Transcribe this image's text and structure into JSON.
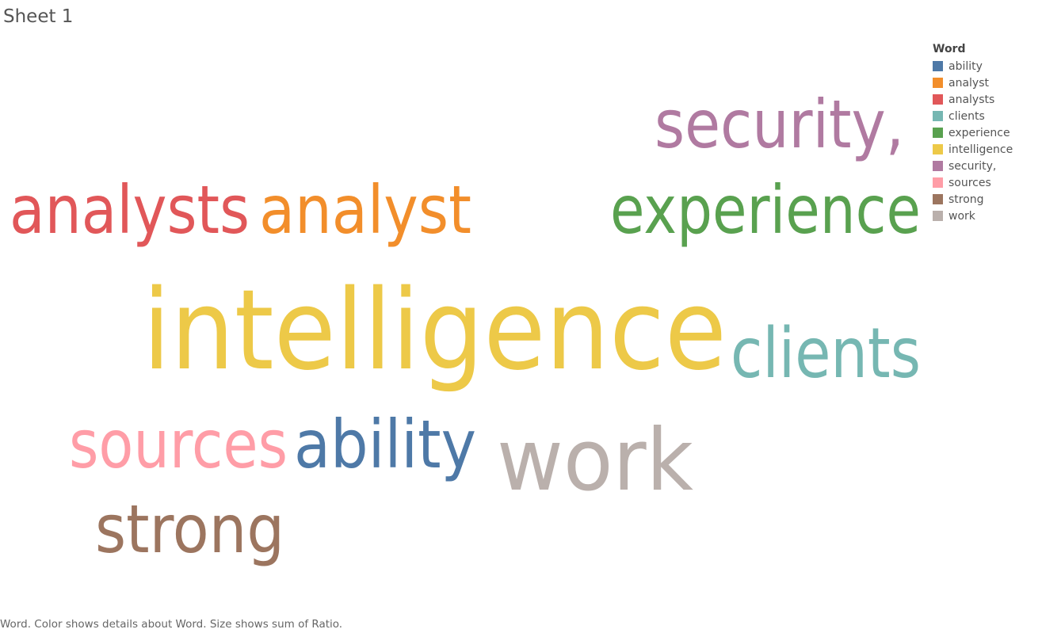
{
  "sheet": {
    "title": "Sheet 1"
  },
  "legend": {
    "title": "Word",
    "items": [
      {
        "label": "ability",
        "color": "#4e79a7"
      },
      {
        "label": "analyst",
        "color": "#f28e2b"
      },
      {
        "label": "analysts",
        "color": "#e15759"
      },
      {
        "label": "clients",
        "color": "#76b7b2"
      },
      {
        "label": "experience",
        "color": "#59a14f"
      },
      {
        "label": "intelligence",
        "color": "#edc948"
      },
      {
        "label": "security,",
        "color": "#b07aa1"
      },
      {
        "label": "sources",
        "color": "#ff9da7"
      },
      {
        "label": "strong",
        "color": "#9c755f"
      },
      {
        "label": "work",
        "color": "#bab0ac"
      }
    ]
  },
  "caption": "Word.  Color shows details about Word.  Size shows sum of Ratio.",
  "chart_data": {
    "type": "word-cloud",
    "color_field": "Word",
    "size_field": "sum of Ratio",
    "words": [
      {
        "text": "intelligence",
        "color": "#edc948",
        "relative_size": 1.0
      },
      {
        "text": "work",
        "color": "#bab0ac",
        "relative_size": 0.78
      },
      {
        "text": "clients",
        "color": "#76b7b2",
        "relative_size": 0.62
      },
      {
        "text": "experience",
        "color": "#59a14f",
        "relative_size": 0.6
      },
      {
        "text": "analysts",
        "color": "#e15759",
        "relative_size": 0.6
      },
      {
        "text": "analyst",
        "color": "#f28e2b",
        "relative_size": 0.6
      },
      {
        "text": "security,",
        "color": "#b07aa1",
        "relative_size": 0.6
      },
      {
        "text": "ability",
        "color": "#4e79a7",
        "relative_size": 0.6
      },
      {
        "text": "sources",
        "color": "#ff9da7",
        "relative_size": 0.6
      },
      {
        "text": "strong",
        "color": "#9c755f",
        "relative_size": 0.6
      }
    ]
  }
}
